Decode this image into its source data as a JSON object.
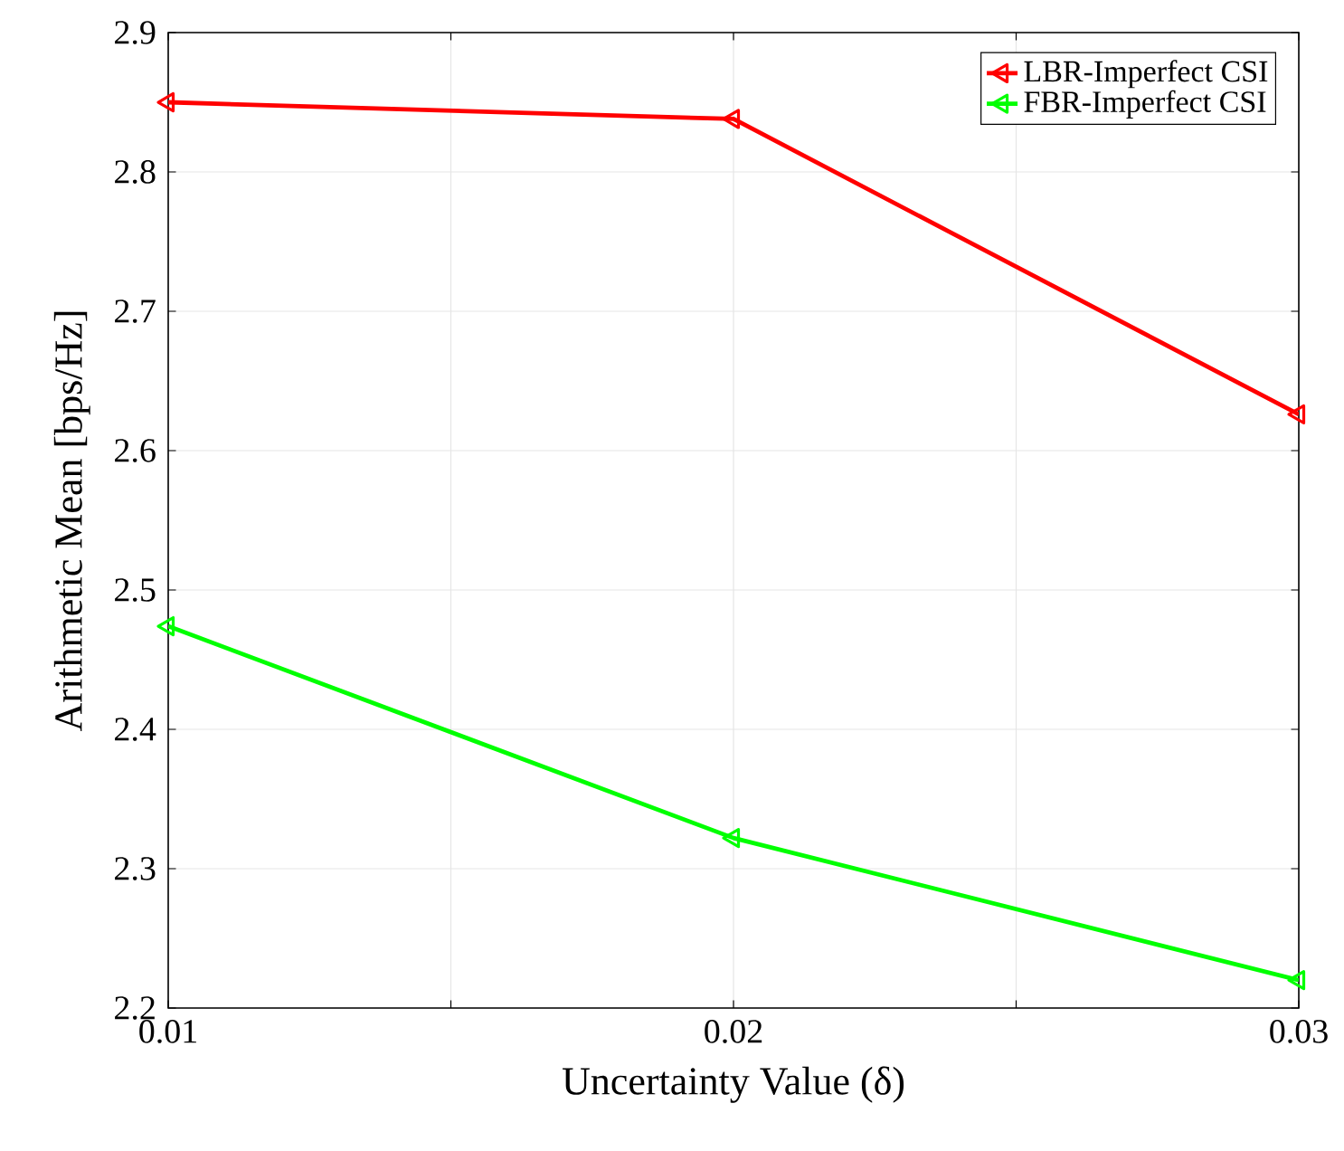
{
  "chart_data": {
    "type": "line",
    "xlabel": "Uncertainty Value (δ)",
    "ylabel": "Arithmetic Mean [bps/Hz]",
    "x": [
      0.01,
      0.02,
      0.03
    ],
    "series": [
      {
        "name": "LBR-Imperfect CSI",
        "color": "#ff0000",
        "values": [
          2.85,
          2.838,
          2.626
        ]
      },
      {
        "name": "FBR-Imperfect CSI",
        "color": "#00ff00",
        "values": [
          2.474,
          2.322,
          2.22
        ]
      }
    ],
    "xlim": [
      0.01,
      0.03
    ],
    "xticks": [
      0.01,
      {
        "value": 0.015,
        "label": null
      },
      0.02,
      {
        "value": 0.025,
        "label": null
      },
      0.03
    ],
    "ylim": [
      2.2,
      2.9
    ],
    "yticks": [
      2.2,
      2.3,
      2.4,
      2.5,
      2.6,
      2.7,
      2.8,
      2.9
    ],
    "grid": true,
    "legend": "top right",
    "marker": "triangle",
    "line_style": "solid"
  }
}
